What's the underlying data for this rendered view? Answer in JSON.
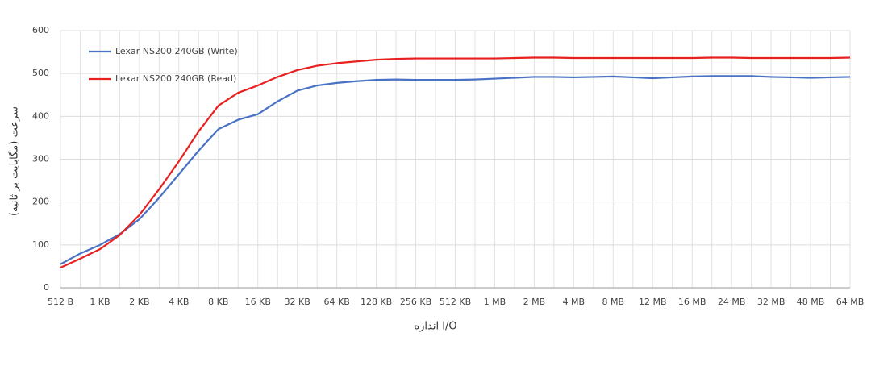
{
  "chart_data": {
    "type": "line",
    "y_label": "سرعت (مگابایت بر ثانیه)",
    "x_label": "اندازه I/O",
    "categories": [
      "512 B",
      null,
      "1 KB",
      null,
      "2 KB",
      null,
      "4 KB",
      null,
      "8 KB",
      null,
      "16 KB",
      null,
      "32 KB",
      null,
      "64 KB",
      null,
      "128 KB",
      null,
      "256 KB",
      null,
      "512 KB",
      null,
      "1 MB",
      null,
      "2 MB",
      null,
      "4 MB",
      null,
      "8 MB",
      null,
      "12 MB",
      null,
      "16 MB",
      null,
      "24 MB",
      null,
      "32 MB",
      null,
      "48 MB",
      null,
      "64 MB"
    ],
    "series": [
      {
        "name": "Lexar NS200 240GB (Write)",
        "color": "#4a72c4",
        "values": [
          55,
          80,
          100,
          125,
          160,
          210,
          265,
          320,
          370,
          392,
          405,
          435,
          460,
          472,
          478,
          482,
          485,
          486,
          485,
          485,
          485,
          486,
          488,
          490,
          492,
          492,
          491,
          492,
          493,
          491,
          489,
          491,
          493,
          494,
          494,
          494,
          492,
          491,
          490,
          491,
          492
        ]
      },
      {
        "name": "Lexar NS200 240GB (Read)",
        "color": "#e8201f",
        "values": [
          47,
          68,
          90,
          123,
          170,
          230,
          295,
          365,
          425,
          455,
          472,
          492,
          508,
          518,
          524,
          528,
          532,
          534,
          535,
          535,
          535,
          535,
          535,
          536,
          537,
          537,
          536,
          536,
          536,
          536,
          536,
          536,
          536,
          537,
          537,
          536,
          536,
          536,
          536,
          536,
          537
        ]
      }
    ],
    "ylim": [
      0,
      600
    ],
    "yticks": [
      0,
      100,
      200,
      300,
      400,
      500,
      600
    ],
    "grid": true,
    "legend": "top-left"
  }
}
